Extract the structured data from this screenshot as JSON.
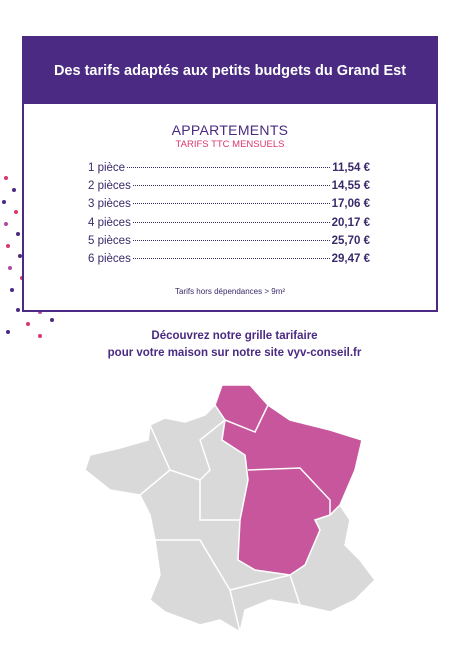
{
  "header": {
    "title": "Des tarifs adaptés aux petits budgets du Grand Est"
  },
  "section": {
    "title": "APPARTEMENTS",
    "subtitle": "TARIFS TTC MENSUELS"
  },
  "rows": [
    {
      "label": "1 pièce",
      "price": "11,54 €"
    },
    {
      "label": "2 pièces",
      "price": "14,55 €"
    },
    {
      "label": "3 pièces",
      "price": "17,06 €"
    },
    {
      "label": "4 pièces",
      "price": "20,17 €"
    },
    {
      "label": "5 pièces",
      "price": "25,70 €"
    },
    {
      "label": "6 pièces",
      "price": "29,47 €"
    }
  ],
  "note": "Tarifs hors dépendances > 9m²",
  "cta": {
    "lines": [
      "Découvrez notre grille tarifaire",
      "pour votre maison sur notre site vyv-conseil.fr"
    ]
  }
}
